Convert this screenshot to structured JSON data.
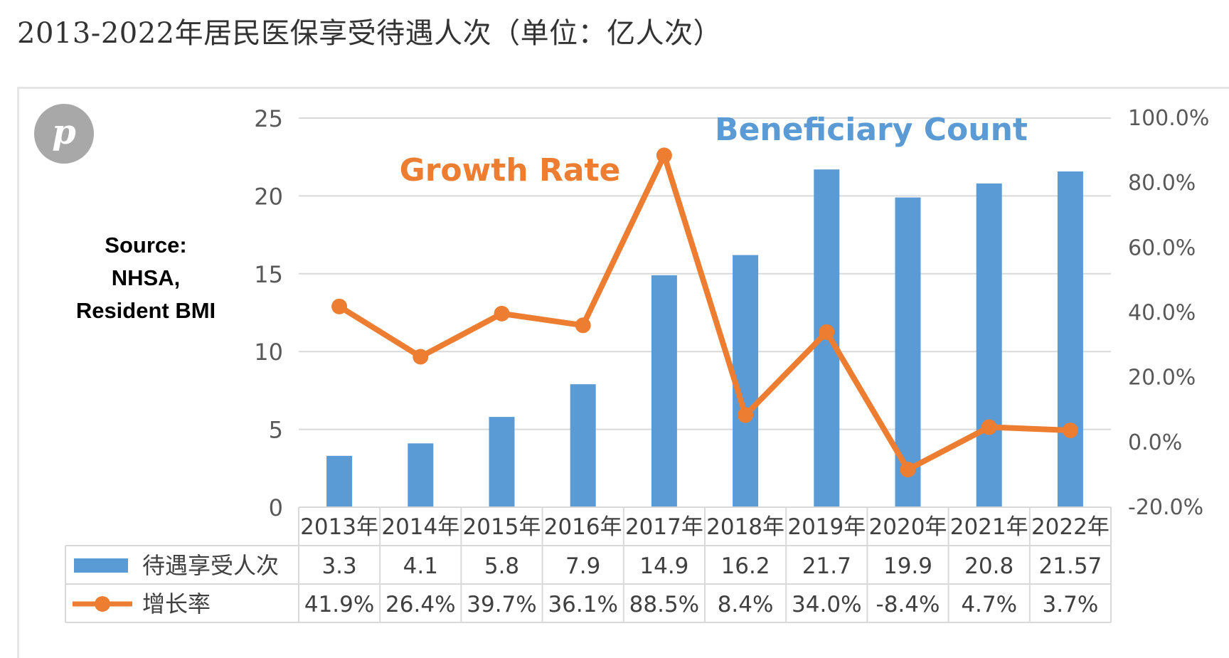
{
  "page_title": "2013-2022年居民医保享受待遇人次（单位：亿人次）",
  "pin_letter": "p",
  "source_lines": [
    "Source:",
    "NHSA,",
    "Resident BMI"
  ],
  "colors": {
    "bar": "#5b9bd5",
    "line": "#ed7d31",
    "grid": "#d9d9d9",
    "axis_text": "#595959",
    "table_text": "#404040"
  },
  "chart_data": {
    "type": "bar+line",
    "title": "2013-2022年居民医保享受待遇人次（单位：亿人次）",
    "categories": [
      "2013年",
      "2014年",
      "2015年",
      "2016年",
      "2017年",
      "2018年",
      "2019年",
      "2020年",
      "2021年",
      "2022年"
    ],
    "series": [
      {
        "name": "待遇享受人次",
        "type": "bar",
        "axis": "left",
        "values": [
          3.3,
          4.1,
          5.8,
          7.9,
          14.9,
          16.2,
          21.7,
          19.9,
          20.8,
          21.57
        ],
        "labels": [
          "3.3",
          "4.1",
          "5.8",
          "7.9",
          "14.9",
          "16.2",
          "21.7",
          "19.9",
          "20.8",
          "21.57"
        ]
      },
      {
        "name": "增长率",
        "type": "line",
        "axis": "right",
        "values": [
          41.9,
          26.4,
          39.7,
          36.1,
          88.5,
          8.4,
          34.0,
          -8.4,
          4.7,
          3.7
        ],
        "labels": [
          "41.9%",
          "26.4%",
          "39.7%",
          "36.1%",
          "88.5%",
          "8.4%",
          "34.0%",
          "-8.4%",
          "4.7%",
          "3.7%"
        ]
      }
    ],
    "left_axis": {
      "min": 0,
      "max": 25,
      "ticks": [
        "0",
        "5",
        "10",
        "15",
        "20",
        "25"
      ]
    },
    "right_axis": {
      "min": -20,
      "max": 100,
      "ticks": [
        "-20.0%",
        "0.0%",
        "20.0%",
        "40.0%",
        "60.0%",
        "80.0%",
        "100.0%"
      ]
    },
    "annotations": {
      "growth_rate": "Growth Rate",
      "beneficiary_count": "Beneficiary Count"
    },
    "grid": true,
    "legend": "table-below"
  }
}
